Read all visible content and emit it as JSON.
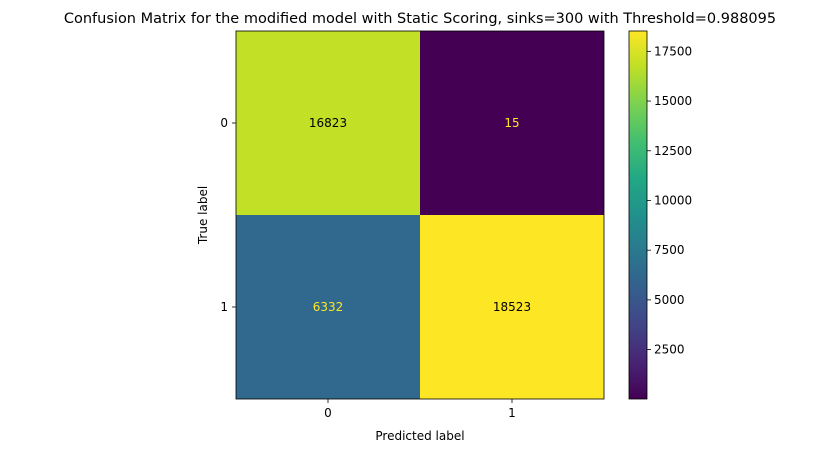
{
  "chart_data": {
    "type": "heatmap",
    "title": "Confusion Matrix for the modified model with Static Scoring, sinks=300 with Threshold=0.988095",
    "xlabel": "Predicted label",
    "ylabel": "True label",
    "x_categories": [
      "0",
      "1"
    ],
    "y_categories": [
      "0",
      "1"
    ],
    "values": [
      [
        16823,
        15
      ],
      [
        6332,
        18523
      ]
    ],
    "colormap": "viridis",
    "colorbar": {
      "range": [
        15,
        18523
      ],
      "ticks": [
        2500,
        5000,
        7500,
        10000,
        12500,
        15000,
        17500
      ]
    },
    "cell_text_colors": {
      "dark_text": "#000000",
      "light_text": "#fde725"
    }
  }
}
